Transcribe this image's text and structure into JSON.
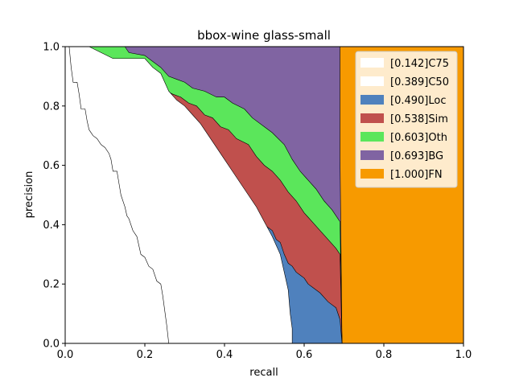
{
  "chart_data": {
    "type": "area",
    "title": "bbox-wine glass-small",
    "xlabel": "recall",
    "ylabel": "precision",
    "xlim": [
      0,
      1
    ],
    "ylim": [
      0,
      1
    ],
    "xticks": [
      "0.0",
      "0.2",
      "0.4",
      "0.6",
      "0.8",
      "1.0"
    ],
    "yticks": [
      "0.0",
      "0.2",
      "0.4",
      "0.6",
      "0.8",
      "1.0"
    ],
    "grid": false,
    "legend_position": "top-right",
    "series": [
      {
        "name": "[0.142]C75",
        "color": "#ffffff",
        "points": [
          [
            0.0,
            1.0
          ],
          [
            0.01,
            1.0
          ],
          [
            0.015,
            0.93
          ],
          [
            0.02,
            0.88
          ],
          [
            0.03,
            0.88
          ],
          [
            0.035,
            0.84
          ],
          [
            0.04,
            0.79
          ],
          [
            0.05,
            0.79
          ],
          [
            0.055,
            0.75
          ],
          [
            0.06,
            0.72
          ],
          [
            0.07,
            0.7
          ],
          [
            0.08,
            0.69
          ],
          [
            0.09,
            0.67
          ],
          [
            0.1,
            0.66
          ],
          [
            0.11,
            0.64
          ],
          [
            0.115,
            0.62
          ],
          [
            0.12,
            0.58
          ],
          [
            0.13,
            0.58
          ],
          [
            0.135,
            0.54
          ],
          [
            0.14,
            0.5
          ],
          [
            0.15,
            0.46
          ],
          [
            0.155,
            0.43
          ],
          [
            0.16,
            0.42
          ],
          [
            0.17,
            0.38
          ],
          [
            0.18,
            0.36
          ],
          [
            0.19,
            0.3
          ],
          [
            0.2,
            0.29
          ],
          [
            0.21,
            0.26
          ],
          [
            0.22,
            0.25
          ],
          [
            0.23,
            0.21
          ],
          [
            0.24,
            0.2
          ],
          [
            0.245,
            0.16
          ],
          [
            0.25,
            0.11
          ],
          [
            0.255,
            0.06
          ],
          [
            0.26,
            0.0
          ]
        ]
      },
      {
        "name": "[0.389]C50",
        "color": "#ffffff",
        "points": [
          [
            0.0,
            1.0
          ],
          [
            0.06,
            1.0
          ],
          [
            0.09,
            0.98
          ],
          [
            0.12,
            0.96
          ],
          [
            0.15,
            0.96
          ],
          [
            0.2,
            0.96
          ],
          [
            0.22,
            0.93
          ],
          [
            0.24,
            0.91
          ],
          [
            0.25,
            0.88
          ],
          [
            0.26,
            0.85
          ],
          [
            0.28,
            0.82
          ],
          [
            0.3,
            0.8
          ],
          [
            0.32,
            0.77
          ],
          [
            0.34,
            0.74
          ],
          [
            0.36,
            0.7
          ],
          [
            0.38,
            0.66
          ],
          [
            0.4,
            0.62
          ],
          [
            0.42,
            0.58
          ],
          [
            0.44,
            0.54
          ],
          [
            0.46,
            0.5
          ],
          [
            0.48,
            0.46
          ],
          [
            0.5,
            0.41
          ],
          [
            0.52,
            0.36
          ],
          [
            0.54,
            0.3
          ],
          [
            0.55,
            0.24
          ],
          [
            0.56,
            0.18
          ],
          [
            0.565,
            0.1
          ],
          [
            0.57,
            0.05
          ],
          [
            0.57,
            0.0
          ]
        ]
      },
      {
        "name": "[0.490]Loc",
        "color": "#4f81bd",
        "points": [
          [
            0.01,
            1.0
          ],
          [
            0.02,
            0.94
          ],
          [
            0.09,
            0.94
          ],
          [
            0.1,
            0.91
          ],
          [
            0.12,
            0.91
          ],
          [
            0.13,
            0.9
          ],
          [
            0.15,
            0.9
          ],
          [
            0.17,
            0.89
          ],
          [
            0.22,
            0.88
          ],
          [
            0.23,
            0.85
          ],
          [
            0.24,
            0.8
          ],
          [
            0.26,
            0.79
          ],
          [
            0.27,
            0.76
          ],
          [
            0.28,
            0.73
          ],
          [
            0.3,
            0.72
          ],
          [
            0.31,
            0.7
          ],
          [
            0.32,
            0.7
          ],
          [
            0.33,
            0.68
          ],
          [
            0.34,
            0.68
          ],
          [
            0.35,
            0.65
          ],
          [
            0.36,
            0.64
          ],
          [
            0.37,
            0.6
          ],
          [
            0.38,
            0.57
          ],
          [
            0.39,
            0.52
          ],
          [
            0.4,
            0.5
          ],
          [
            0.42,
            0.48
          ],
          [
            0.43,
            0.48
          ],
          [
            0.44,
            0.47
          ],
          [
            0.45,
            0.45
          ],
          [
            0.46,
            0.42
          ],
          [
            0.48,
            0.42
          ],
          [
            0.49,
            0.4
          ],
          [
            0.5,
            0.4
          ],
          [
            0.51,
            0.39
          ],
          [
            0.52,
            0.38
          ],
          [
            0.53,
            0.35
          ],
          [
            0.54,
            0.34
          ],
          [
            0.55,
            0.3
          ],
          [
            0.56,
            0.27
          ],
          [
            0.57,
            0.26
          ],
          [
            0.58,
            0.24
          ],
          [
            0.59,
            0.23
          ],
          [
            0.6,
            0.22
          ],
          [
            0.61,
            0.2
          ],
          [
            0.62,
            0.19
          ],
          [
            0.64,
            0.17
          ],
          [
            0.66,
            0.14
          ],
          [
            0.68,
            0.12
          ],
          [
            0.69,
            0.08
          ],
          [
            0.695,
            0.0
          ]
        ]
      },
      {
        "name": "[0.538]Sim",
        "color": "#c0504d",
        "points": [
          [
            0.01,
            1.0
          ],
          [
            0.02,
            0.95
          ],
          [
            0.09,
            0.95
          ],
          [
            0.1,
            0.92
          ],
          [
            0.2,
            0.92
          ],
          [
            0.22,
            0.89
          ],
          [
            0.24,
            0.86
          ],
          [
            0.27,
            0.84
          ],
          [
            0.29,
            0.83
          ],
          [
            0.31,
            0.81
          ],
          [
            0.33,
            0.8
          ],
          [
            0.35,
            0.77
          ],
          [
            0.37,
            0.76
          ],
          [
            0.39,
            0.73
          ],
          [
            0.41,
            0.72
          ],
          [
            0.43,
            0.69
          ],
          [
            0.46,
            0.67
          ],
          [
            0.48,
            0.63
          ],
          [
            0.5,
            0.6
          ],
          [
            0.52,
            0.58
          ],
          [
            0.54,
            0.55
          ],
          [
            0.56,
            0.51
          ],
          [
            0.58,
            0.48
          ],
          [
            0.6,
            0.44
          ],
          [
            0.62,
            0.41
          ],
          [
            0.64,
            0.38
          ],
          [
            0.66,
            0.35
          ],
          [
            0.68,
            0.32
          ],
          [
            0.69,
            0.3
          ],
          [
            0.695,
            0.0
          ]
        ]
      },
      {
        "name": "[0.603]Oth",
        "color": "#5be65b",
        "points": [
          [
            0.01,
            1.0
          ],
          [
            0.15,
            1.0
          ],
          [
            0.16,
            0.98
          ],
          [
            0.2,
            0.97
          ],
          [
            0.22,
            0.95
          ],
          [
            0.24,
            0.93
          ],
          [
            0.26,
            0.9
          ],
          [
            0.28,
            0.89
          ],
          [
            0.3,
            0.88
          ],
          [
            0.32,
            0.86
          ],
          [
            0.35,
            0.85
          ],
          [
            0.38,
            0.83
          ],
          [
            0.4,
            0.83
          ],
          [
            0.42,
            0.81
          ],
          [
            0.45,
            0.79
          ],
          [
            0.47,
            0.76
          ],
          [
            0.5,
            0.73
          ],
          [
            0.52,
            0.71
          ],
          [
            0.55,
            0.67
          ],
          [
            0.57,
            0.62
          ],
          [
            0.59,
            0.58
          ],
          [
            0.61,
            0.55
          ],
          [
            0.63,
            0.52
          ],
          [
            0.65,
            0.48
          ],
          [
            0.67,
            0.45
          ],
          [
            0.69,
            0.41
          ],
          [
            0.695,
            0.0
          ]
        ]
      },
      {
        "name": "[0.693]BG",
        "color": "#8064a2",
        "points": [
          [
            0.01,
            1.0
          ],
          [
            0.69,
            1.0
          ],
          [
            0.69,
            0.63
          ],
          [
            0.695,
            0.0
          ]
        ]
      },
      {
        "name": "[1.000]FN",
        "color": "#f79a00",
        "points": [
          [
            0.69,
            1.0
          ],
          [
            1.0,
            1.0
          ],
          [
            1.0,
            0.0
          ],
          [
            0.7,
            0.0
          ]
        ]
      }
    ]
  }
}
